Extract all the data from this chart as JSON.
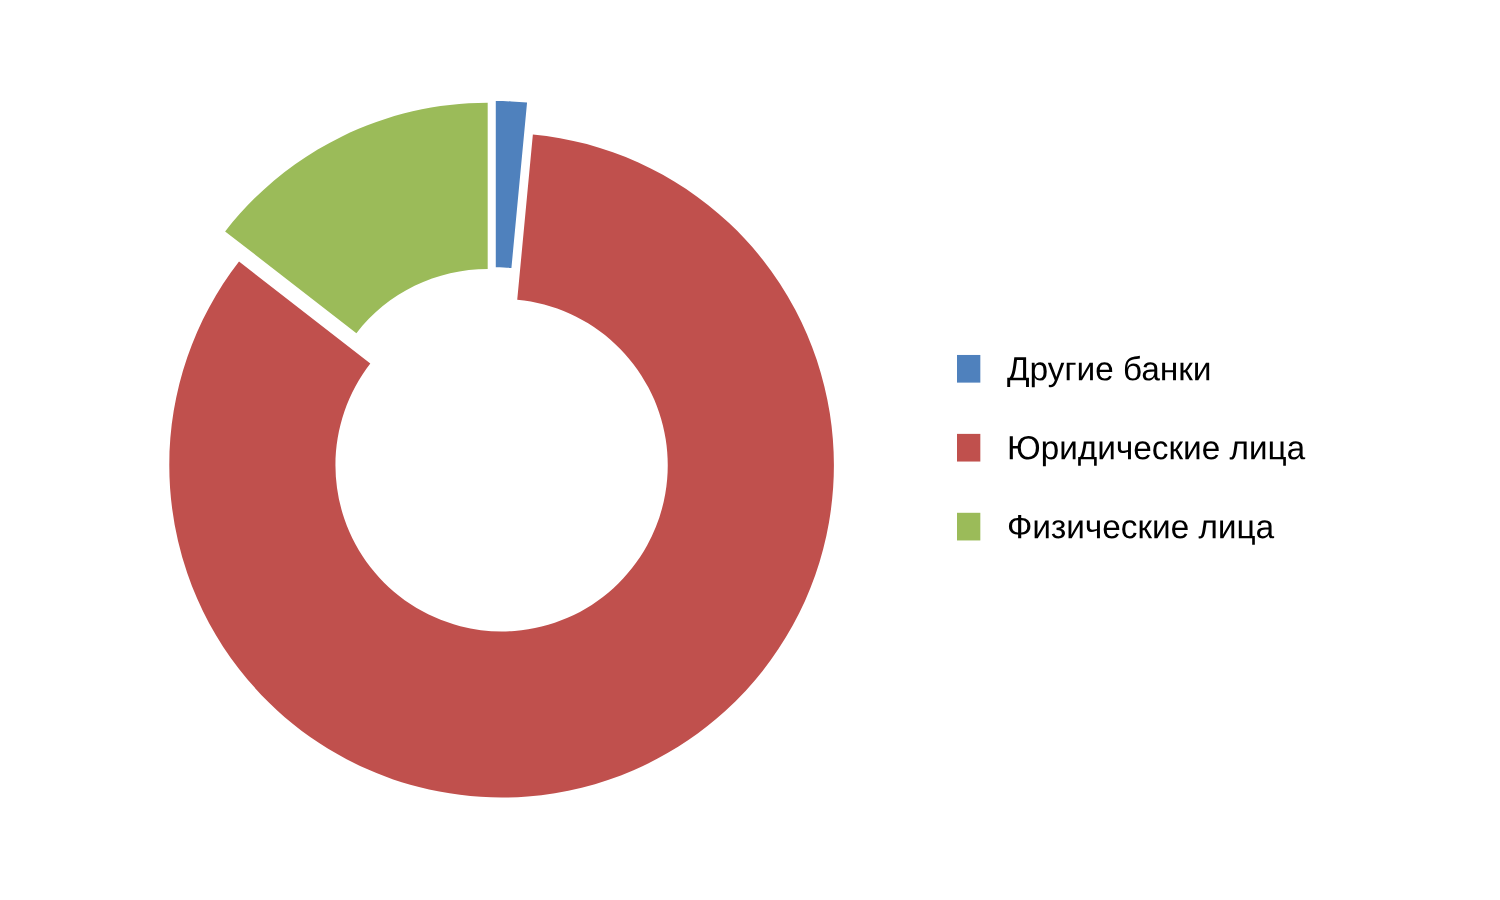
{
  "chart_data": {
    "type": "donut",
    "categories": [
      "Другие банки",
      "Юридические лица",
      "Физические лица"
    ],
    "values": [
      1.5,
      84,
      14.5
    ],
    "colors": [
      "#4f81bd",
      "#c0504d",
      "#9bbb59"
    ],
    "legend": "right"
  }
}
